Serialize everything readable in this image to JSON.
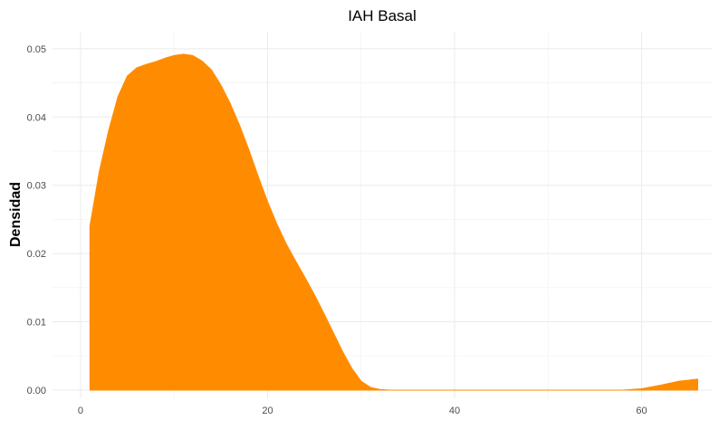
{
  "chart_data": {
    "type": "area",
    "title": "IAH Basal",
    "xlabel": "",
    "ylabel": "Densidad",
    "xlim": [
      -3,
      67.5
    ],
    "ylim": [
      -0.0012,
      0.0525
    ],
    "x_ticks": [
      0,
      20,
      40,
      60
    ],
    "x_tick_labels": [
      "0",
      "20",
      "40",
      "60"
    ],
    "y_ticks": [
      0.0,
      0.01,
      0.02,
      0.03,
      0.04,
      0.05
    ],
    "y_tick_labels": [
      "0.00",
      "0.01",
      "0.02",
      "0.03",
      "0.04",
      "0.05"
    ],
    "grid": true,
    "fill_color": "#FF8C00",
    "series": [
      {
        "x": [
          1,
          2,
          3,
          4,
          5,
          6,
          7,
          8,
          9,
          10,
          11,
          12,
          13,
          14,
          15,
          16,
          17,
          18,
          19,
          20,
          21,
          22,
          23,
          24,
          25,
          26,
          27,
          28,
          29,
          30,
          31,
          32,
          33,
          34,
          35,
          40,
          45,
          50,
          55,
          58,
          60,
          62,
          64,
          66
        ],
        "y": [
          0.024,
          0.032,
          0.038,
          0.043,
          0.046,
          0.0472,
          0.0477,
          0.0481,
          0.0486,
          0.049,
          0.0492,
          0.049,
          0.0482,
          0.0469,
          0.0447,
          0.042,
          0.0388,
          0.0352,
          0.0313,
          0.0276,
          0.0243,
          0.0214,
          0.0189,
          0.0165,
          0.014,
          0.0113,
          0.0085,
          0.0057,
          0.0032,
          0.0013,
          0.0004,
          0.0001,
          0.0,
          0.0,
          0.0,
          0.0,
          0.0,
          0.0,
          0.0,
          0.0,
          0.0002,
          0.0007,
          0.0013,
          0.0016
        ]
      }
    ]
  }
}
